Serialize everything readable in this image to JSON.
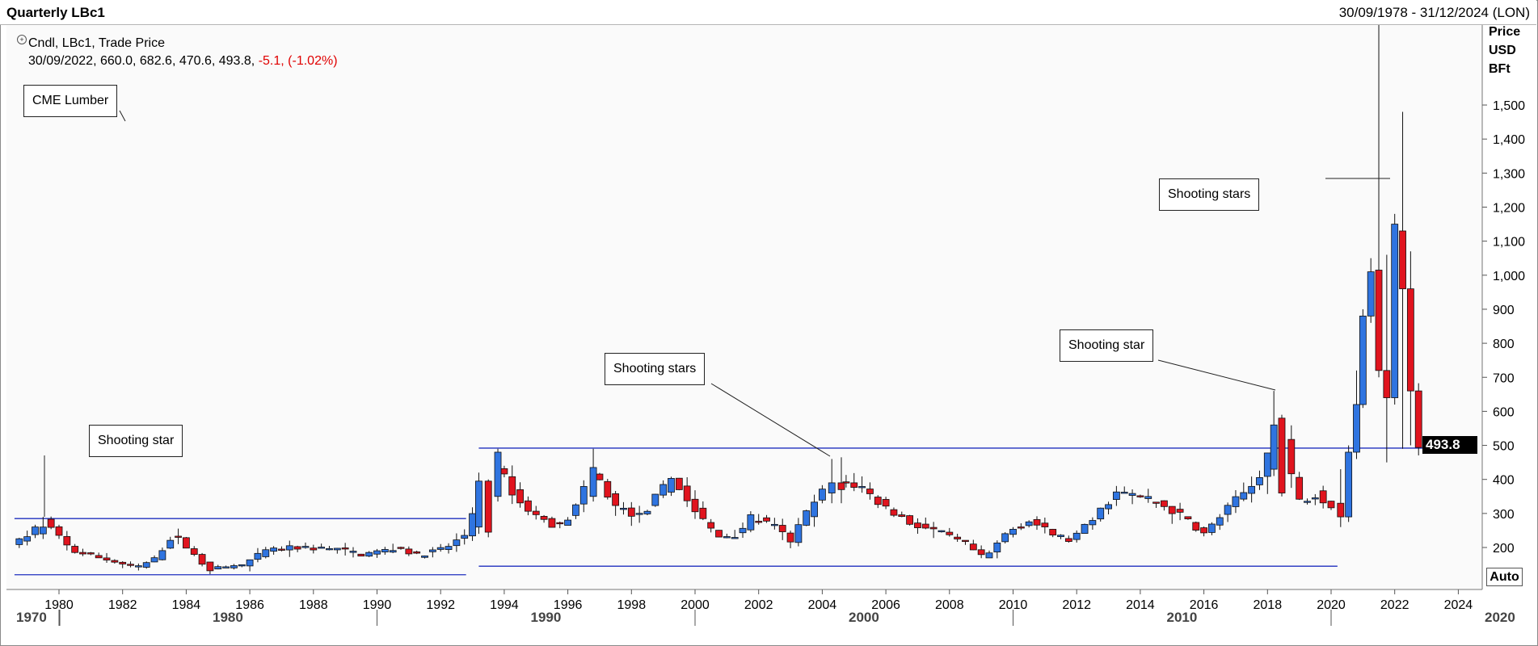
{
  "window": {
    "title": "Quarterly LBc1",
    "range": "30/09/1978 - 31/12/2024 (LON)"
  },
  "legend": {
    "series": "Cndl, LBc1, Trade Price",
    "values": "30/09/2022, 660.0, 682.6, 470.6, 493.8,",
    "change": "-5.1, (-1.02%)"
  },
  "yaxis_title": [
    "Price",
    "USD",
    "BFt"
  ],
  "last_price": "493.8",
  "auto_button": "Auto",
  "colors": {
    "up": "#2f74e0",
    "down": "#e0141e",
    "line": "#1f2fbe"
  },
  "annotations": {
    "cme_lumber": "CME Lumber",
    "star_1979": "Shooting star",
    "stars_2004": "Shooting stars",
    "star_2018": "Shooting star",
    "stars_2021": "Shooting stars"
  },
  "chart_data": {
    "type": "candlestick",
    "title": "Quarterly LBc1",
    "ylim": [
      120,
      1770
    ],
    "y_ticks": [
      200,
      300,
      400,
      500,
      600,
      700,
      800,
      900,
      1000,
      1100,
      1200,
      1300,
      1400,
      1500
    ],
    "y_tick_labels": [
      "200",
      "300",
      "400",
      "500",
      "600",
      "700",
      "800",
      "900",
      "1,000",
      "1,100",
      "1,200",
      "1,300",
      "1,400",
      "1,500"
    ],
    "x_ticks": [
      1980,
      1982,
      1984,
      1986,
      1988,
      1990,
      1992,
      1994,
      1996,
      1998,
      2000,
      2002,
      2004,
      2006,
      2008,
      2010,
      2012,
      2014,
      2016,
      2018,
      2020,
      2022,
      2024
    ],
    "decade_labels": [
      {
        "year": 1970,
        "label": "1970"
      },
      {
        "year": 1980,
        "label": "1980"
      },
      {
        "year": 1990,
        "label": "1990"
      },
      {
        "year": 2000,
        "label": "2000"
      },
      {
        "year": 2010,
        "label": "2010"
      },
      {
        "year": 2020,
        "label": "2020"
      }
    ],
    "last_bar": {
      "date": "30/09/2022",
      "open": 660.0,
      "high": 682.6,
      "low": 470.6,
      "close": 493.8
    },
    "anchors": [
      [
        1978.7,
        215
      ],
      [
        1979.0,
        235
      ],
      [
        1979.5,
        280
      ],
      [
        1980.4,
        190
      ],
      [
        1981.5,
        165
      ],
      [
        1982.4,
        140
      ],
      [
        1983.0,
        165
      ],
      [
        1983.6,
        240
      ],
      [
        1984.7,
        135
      ],
      [
        1985.8,
        150
      ],
      [
        1986.5,
        190
      ],
      [
        1987.5,
        200
      ],
      [
        1988.8,
        195
      ],
      [
        1989.5,
        180
      ],
      [
        1990.8,
        200
      ],
      [
        1991.2,
        175
      ],
      [
        1992.2,
        200
      ],
      [
        1992.8,
        240
      ],
      [
        1993.2,
        380
      ],
      [
        1993.8,
        430
      ],
      [
        1994.5,
        330
      ],
      [
        1995.2,
        280
      ],
      [
        1995.8,
        260
      ],
      [
        1996.3,
        330
      ],
      [
        1996.8,
        420
      ],
      [
        1997.5,
        320
      ],
      [
        1998.3,
        290
      ],
      [
        1999.3,
        410
      ],
      [
        1999.8,
        330
      ],
      [
        2000.7,
        230
      ],
      [
        2001.3,
        240
      ],
      [
        2001.8,
        290
      ],
      [
        2002.5,
        260
      ],
      [
        2003.0,
        220
      ],
      [
        2003.5,
        300
      ],
      [
        2004.3,
        400
      ],
      [
        2005.2,
        380
      ],
      [
        2005.8,
        330
      ],
      [
        2006.8,
        270
      ],
      [
        2007.5,
        250
      ],
      [
        2008.5,
        210
      ],
      [
        2009.1,
        165
      ],
      [
        2009.8,
        245
      ],
      [
        2010.5,
        280
      ],
      [
        2011.2,
        240
      ],
      [
        2011.8,
        220
      ],
      [
        2012.5,
        280
      ],
      [
        2013.2,
        360
      ],
      [
        2014.0,
        350
      ],
      [
        2014.8,
        320
      ],
      [
        2015.5,
        280
      ],
      [
        2016.0,
        240
      ],
      [
        2016.8,
        320
      ],
      [
        2017.6,
        390
      ],
      [
        2018.3,
        540
      ],
      [
        2018.6,
        500
      ],
      [
        2018.9,
        330
      ],
      [
        2019.5,
        360
      ],
      [
        2020.1,
        320
      ],
      [
        2020.4,
        400
      ],
      [
        2020.7,
        650
      ],
      [
        2021.0,
        900
      ],
      [
        2021.3,
        960
      ],
      [
        2021.6,
        700
      ],
      [
        2021.9,
        1120
      ],
      [
        2022.2,
        700
      ],
      [
        2022.6,
        494
      ]
    ],
    "marked_candles": [
      {
        "t": 1979.5,
        "o": 240,
        "h": 290,
        "l": 225,
        "c": 260
      },
      {
        "t": 1993.2,
        "o": 260,
        "h": 420,
        "l": 240,
        "c": 395
      },
      {
        "t": 1993.5,
        "o": 395,
        "h": 400,
        "l": 230,
        "c": 245
      },
      {
        "t": 1993.8,
        "o": 350,
        "h": 490,
        "l": 335,
        "c": 480
      },
      {
        "t": 1996.8,
        "o": 350,
        "h": 490,
        "l": 335,
        "c": 435
      },
      {
        "t": 2004.3,
        "o": 360,
        "h": 460,
        "l": 330,
        "c": 390
      },
      {
        "t": 2004.6,
        "o": 390,
        "h": 465,
        "l": 330,
        "c": 370
      },
      {
        "t": 2018.2,
        "o": 430,
        "h": 660,
        "l": 410,
        "c": 560
      },
      {
        "t": 2018.45,
        "o": 580,
        "h": 590,
        "l": 350,
        "c": 360
      },
      {
        "t": 2020.3,
        "o": 330,
        "h": 430,
        "l": 260,
        "c": 290
      },
      {
        "t": 2020.55,
        "o": 290,
        "h": 500,
        "l": 275,
        "c": 480
      },
      {
        "t": 2020.8,
        "o": 480,
        "h": 720,
        "l": 460,
        "c": 620
      },
      {
        "t": 2021.0,
        "o": 620,
        "h": 900,
        "l": 610,
        "c": 880
      },
      {
        "t": 2021.25,
        "o": 880,
        "h": 1050,
        "l": 860,
        "c": 1010
      },
      {
        "t": 2021.5,
        "o": 1015,
        "h": 1770,
        "l": 700,
        "c": 720
      },
      {
        "t": 2021.75,
        "o": 720,
        "h": 1060,
        "l": 450,
        "c": 640
      },
      {
        "t": 2022.0,
        "o": 640,
        "h": 1180,
        "l": 620,
        "c": 1150
      },
      {
        "t": 2022.25,
        "o": 1130,
        "h": 1480,
        "l": 490,
        "c": 960
      },
      {
        "t": 2022.5,
        "o": 960,
        "h": 1070,
        "l": 500,
        "c": 660
      },
      {
        "t": 2022.75,
        "o": 660,
        "h": 682.6,
        "l": 470.6,
        "c": 493.8
      }
    ],
    "levels": [
      {
        "from": 1978.6,
        "to": 1992.8,
        "value": 285
      },
      {
        "from": 1978.6,
        "to": 1992.8,
        "value": 120
      },
      {
        "from": 1993.2,
        "to": 2023.0,
        "value": 492
      },
      {
        "from": 1993.2,
        "to": 2020.2,
        "value": 145
      }
    ]
  }
}
